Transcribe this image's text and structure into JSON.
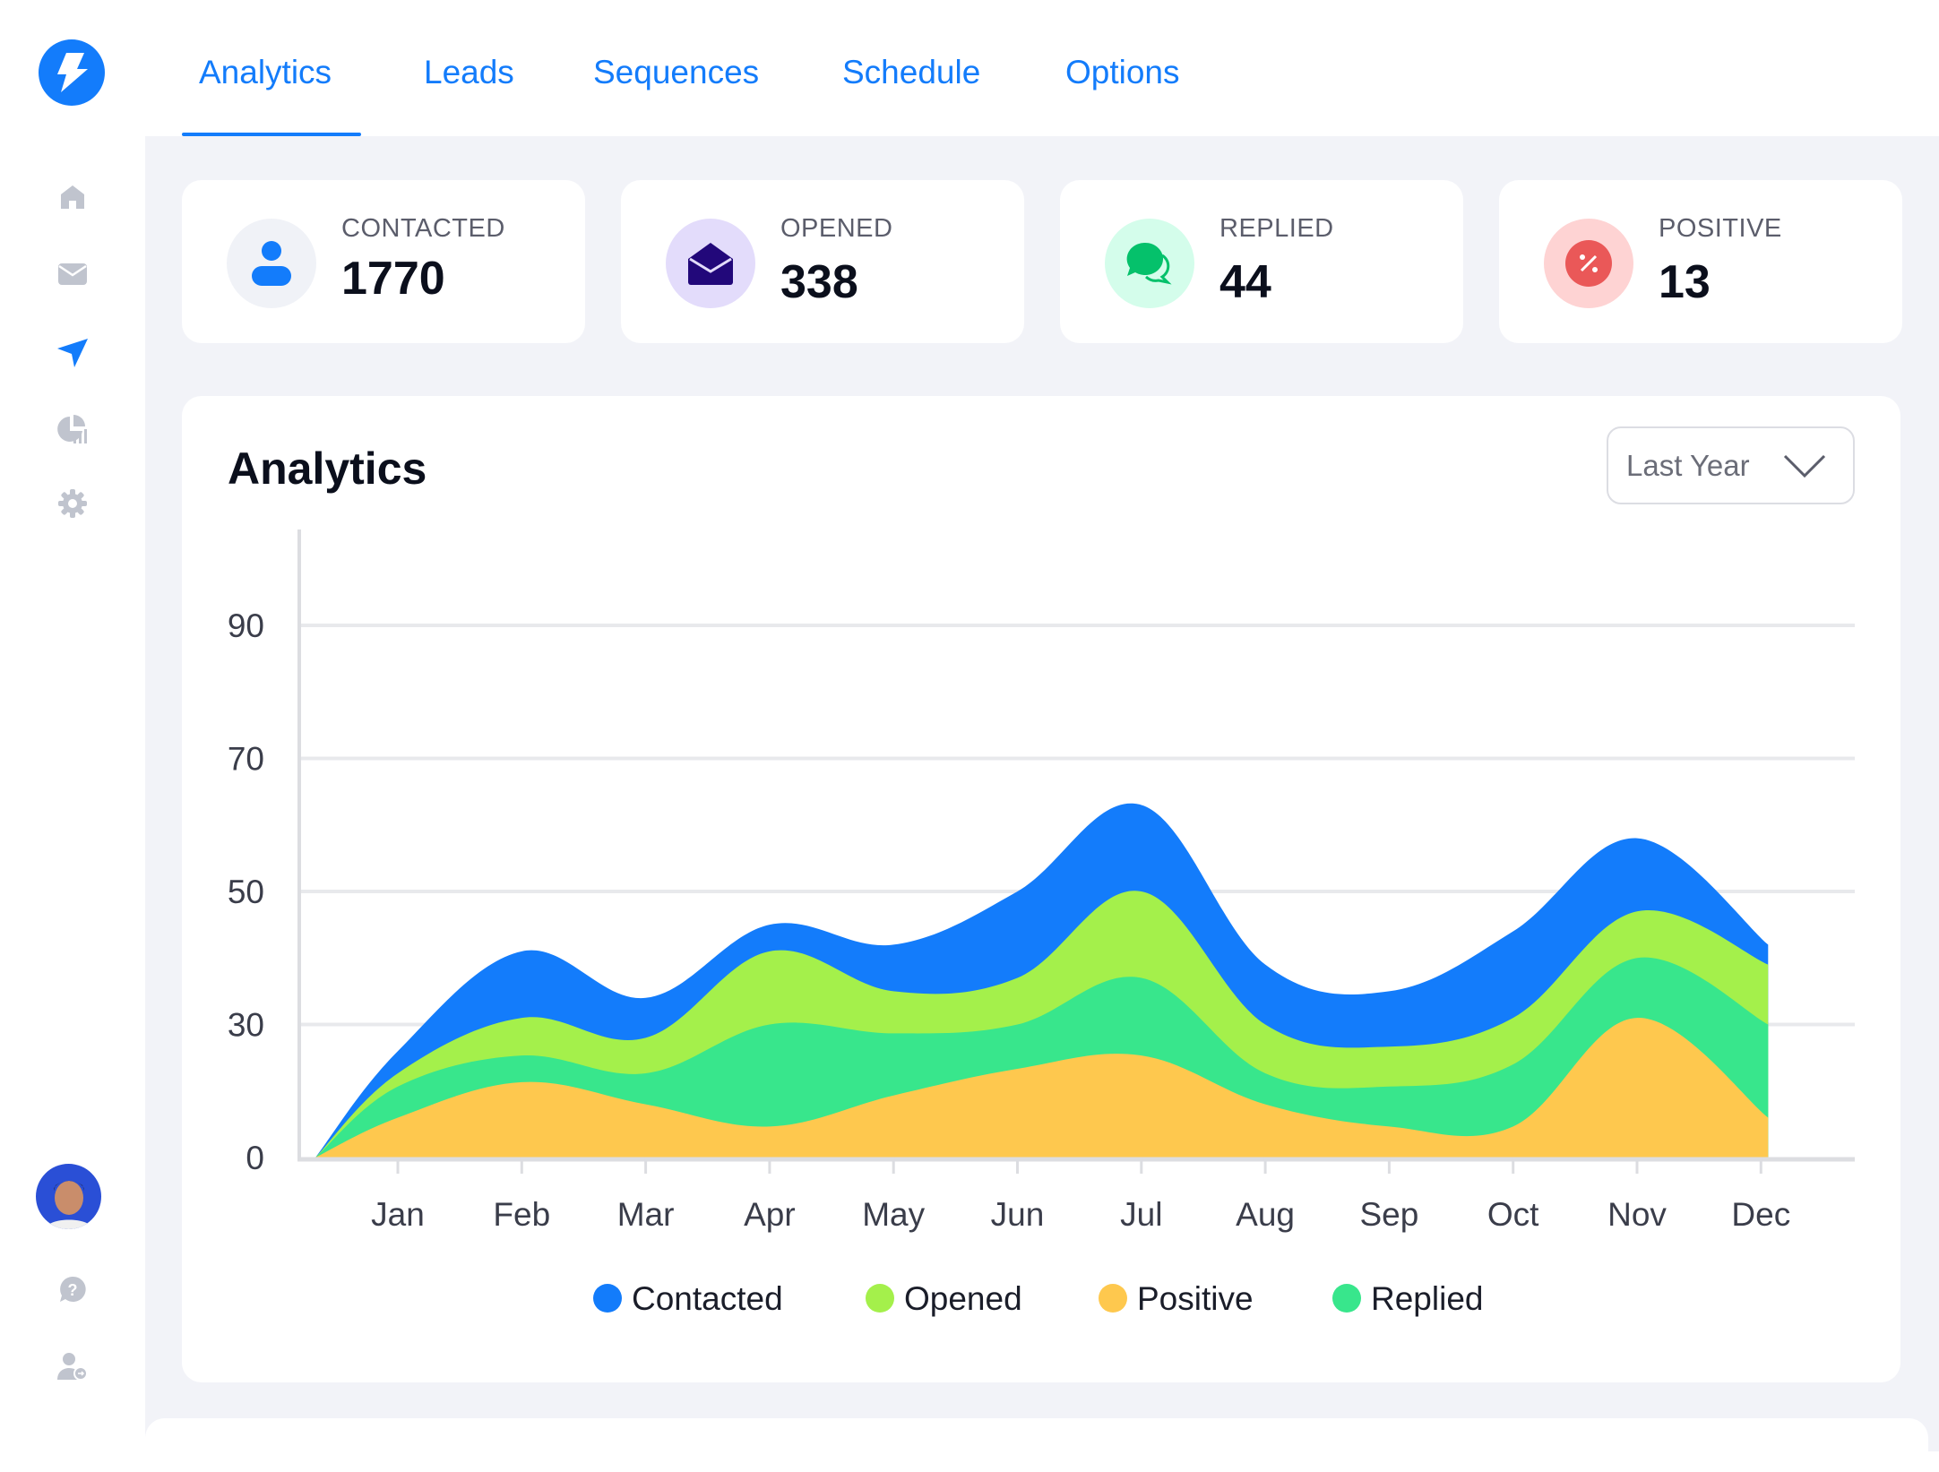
{
  "nav": {
    "tabs": [
      {
        "label": "Analytics",
        "active": true
      },
      {
        "label": "Leads"
      },
      {
        "label": "Sequences"
      },
      {
        "label": "Schedule"
      },
      {
        "label": "Options"
      }
    ]
  },
  "sidebar": {
    "items": [
      {
        "icon": "home-icon"
      },
      {
        "icon": "mail-icon"
      },
      {
        "icon": "send-icon",
        "active": true
      },
      {
        "icon": "pie-chart-icon"
      },
      {
        "icon": "gear-icon"
      }
    ],
    "bottom": [
      {
        "icon": "avatar"
      },
      {
        "icon": "help-icon"
      },
      {
        "icon": "user-switch-icon"
      }
    ]
  },
  "stats": [
    {
      "label": "CONTACTED",
      "value": "1770",
      "icon": "user-icon",
      "color": "#137cfb",
      "bg": "#f0f2f7"
    },
    {
      "label": "OPENED",
      "value": "338",
      "icon": "envelope-open-icon",
      "color": "#22087a",
      "bg": "#e3dcfb"
    },
    {
      "label": "REPLIED",
      "value": "44",
      "icon": "chat-icon",
      "color": "#05c16b",
      "bg": "#d4fdeb"
    },
    {
      "label": "POSITIVE",
      "value": "13",
      "icon": "percent-icon",
      "color": "#ea5858",
      "bg": "#fed3d3"
    }
  ],
  "analytics": {
    "title": "Analytics",
    "range": "Last Year"
  },
  "chart_data": {
    "type": "area",
    "stacked": true,
    "categories": [
      "Jan",
      "Feb",
      "Mar",
      "Apr",
      "May",
      "Jun",
      "Jul",
      "Aug",
      "Sep",
      "Oct",
      "Nov",
      "Dec"
    ],
    "y_ticks": [
      0,
      30,
      50,
      70,
      90
    ],
    "grid": true,
    "legend_position": "bottom",
    "legend": [
      "Contacted",
      "Opened",
      "Positive",
      "Replied"
    ],
    "series": [
      {
        "name": "Positive",
        "color": "#fec84e",
        "values": [
          9,
          17,
          12,
          7,
          14,
          20,
          23,
          12,
          7,
          7,
          31,
          9
        ]
      },
      {
        "name": "Replied",
        "color": "#38e68c",
        "values": [
          7,
          6,
          7,
          23,
          14,
          10,
          14,
          7,
          9,
          14,
          9,
          21
        ]
      },
      {
        "name": "Opened",
        "color": "#a4f04b",
        "values": [
          3,
          8,
          8,
          11,
          7,
          7,
          13,
          11,
          9,
          10,
          7,
          9
        ]
      },
      {
        "name": "Contacted",
        "color": "#137cfb",
        "values": [
          5,
          10,
          7,
          4,
          7,
          13,
          13,
          9,
          10,
          13,
          11,
          3
        ]
      }
    ]
  }
}
